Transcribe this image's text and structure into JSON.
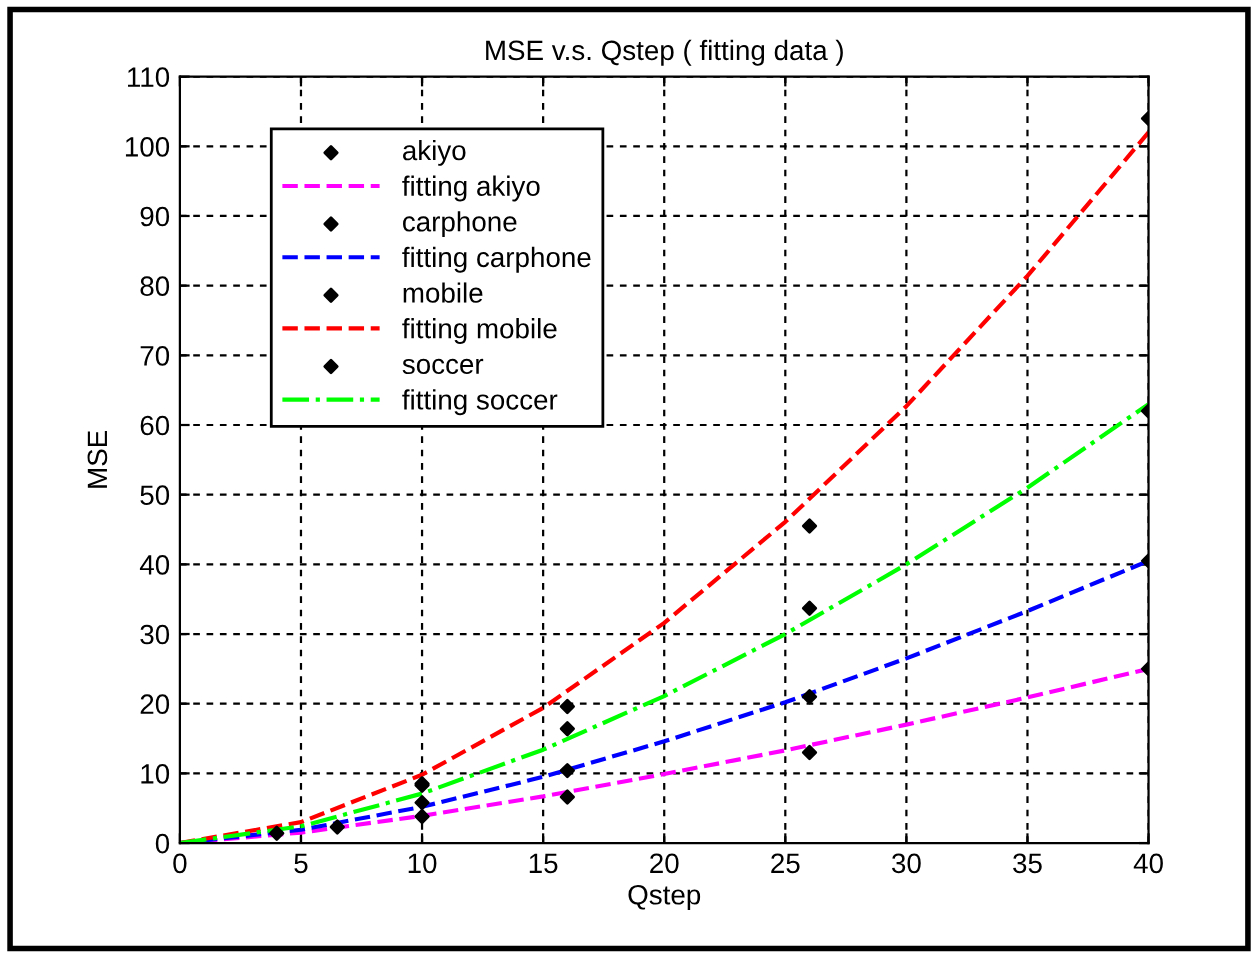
{
  "chart_data": {
    "type": "line",
    "title": "MSE v.s. Qstep ( fitting data )",
    "xlabel": "Qstep",
    "ylabel": "MSE",
    "xlim": [
      0,
      40
    ],
    "ylim": [
      0,
      110
    ],
    "xticks": [
      0,
      5,
      10,
      15,
      20,
      25,
      30,
      35,
      40
    ],
    "yticks": [
      0,
      10,
      20,
      30,
      40,
      50,
      60,
      70,
      80,
      90,
      100,
      110
    ],
    "grid": true,
    "legend": "top left",
    "series": [
      {
        "name": "akiyo",
        "type": "scatter",
        "marker": "diamond",
        "color": "#000000",
        "x": [
          4,
          10,
          16,
          26,
          40
        ],
        "values": [
          1.4,
          3.8,
          6.6,
          13,
          25
        ]
      },
      {
        "name": "fitting akiyo",
        "line_style": "dashed",
        "marker": "none",
        "color": "#ff00ff",
        "x": [
          0,
          5,
          10,
          15,
          20,
          25,
          30,
          35,
          40
        ],
        "values": [
          0,
          1.5,
          3.9,
          6.7,
          9.9,
          13.3,
          17.0,
          20.9,
          25
        ]
      },
      {
        "name": "carphone",
        "type": "scatter",
        "marker": "diamond",
        "color": "#000000",
        "x": [
          6.5,
          10,
          16,
          26,
          40
        ],
        "values": [
          2.3,
          5.8,
          10.4,
          21,
          40.5
        ]
      },
      {
        "name": "fitting carphone",
        "line_style": "dashed",
        "marker": "none",
        "color": "#0000ff",
        "x": [
          0,
          5,
          10,
          15,
          20,
          25,
          30,
          35,
          40
        ],
        "values": [
          0,
          1.9,
          5.2,
          9.5,
          14.6,
          20.2,
          26.5,
          33.3,
          40.5
        ]
      },
      {
        "name": "mobile",
        "type": "scatter",
        "marker": "diamond",
        "color": "#000000",
        "x": [
          10,
          16,
          26,
          40
        ],
        "values": [
          8.5,
          19.6,
          45.5,
          104
        ]
      },
      {
        "name": "fitting mobile",
        "line_style": "dashed",
        "marker": "none",
        "color": "#ff0000",
        "x": [
          0,
          5,
          10,
          15,
          20,
          25,
          30,
          35,
          40
        ],
        "values": [
          0,
          3.0,
          9.8,
          19.4,
          31.6,
          46.1,
          62.7,
          81.4,
          102
        ]
      },
      {
        "name": "soccer",
        "type": "scatter",
        "marker": "diamond",
        "color": "#000000",
        "x": [
          10,
          16,
          26,
          40
        ],
        "values": [
          8.3,
          16.4,
          33.7,
          62
        ]
      },
      {
        "name": "fitting soccer",
        "line_style": "dashdot",
        "marker": "none",
        "color": "#00ff00",
        "x": [
          0,
          5,
          10,
          15,
          20,
          25,
          30,
          35,
          40
        ],
        "values": [
          0,
          2.4,
          7.1,
          13.4,
          21.1,
          30.0,
          40.0,
          51.0,
          63
        ]
      }
    ]
  }
}
